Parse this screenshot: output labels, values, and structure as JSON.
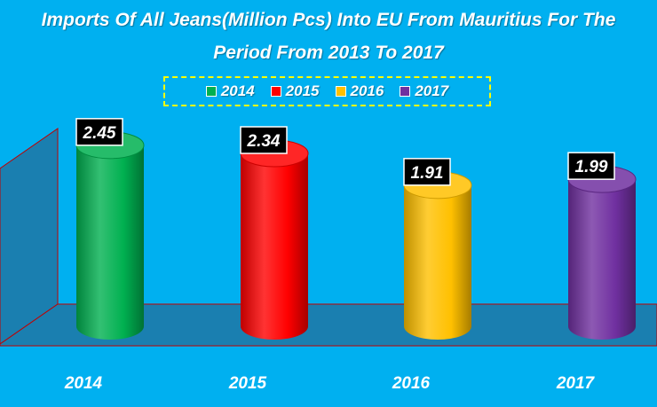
{
  "chart_data": {
    "type": "bar",
    "title_line1": "Imports Of All Jeans(Million Pcs) Into EU From Mauritius For The",
    "title_line2": "Period From 2013 To 2017",
    "categories": [
      "2014",
      "2015",
      "2016",
      "2017"
    ],
    "values": [
      2.45,
      2.34,
      1.91,
      1.99
    ],
    "value_labels": [
      "2.45",
      "2.34",
      "1.91",
      "1.99"
    ],
    "legend": [
      {
        "name": "2014",
        "color": "#00b050"
      },
      {
        "name": "2015",
        "color": "#ff0000"
      },
      {
        "name": "2016",
        "color": "#ffc000"
      },
      {
        "name": "2017",
        "color": "#7030a0"
      }
    ],
    "legend_position": "top",
    "colors": {
      "2014": "#00b050",
      "2015": "#ff0000",
      "2016": "#ffc000",
      "2017": "#7030a0",
      "background": "#00b0f0",
      "floor": "#1a7fb0",
      "wall": "#1a7fb0",
      "label_box": "#000000",
      "title": "#ffffff",
      "legend_border": "#ffff00"
    },
    "bar_shape": "cylinder",
    "ylim": [
      0,
      3
    ],
    "grid": false
  }
}
